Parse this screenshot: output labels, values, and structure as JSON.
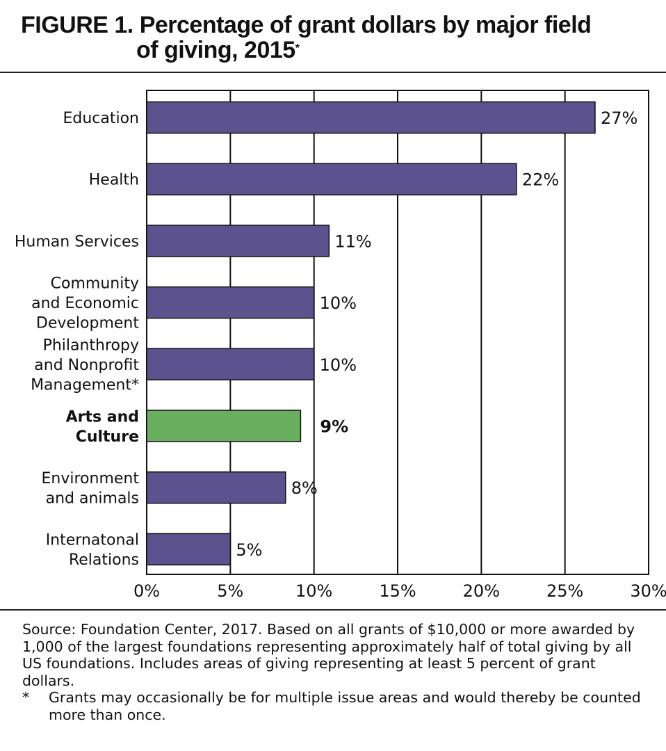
{
  "title": {
    "line1": "FIGURE 1. Percentage of grant dollars by major field",
    "line2": "of giving, 2015",
    "superscript": "*"
  },
  "chart_data": {
    "type": "bar",
    "orientation": "horizontal",
    "categories": [
      "Education",
      "Health",
      "Human Services",
      "Community\nand Economic\nDevelopment",
      "Philanthropy\nand Nonprofit\nManagement*",
      "Arts and\nCulture",
      "Environment\nand animals",
      "Internatonal\nRelations"
    ],
    "values": [
      26.8,
      22.1,
      10.9,
      10.0,
      10.0,
      9.2,
      8.3,
      5.0
    ],
    "data_labels": [
      "27%",
      "22%",
      "11%",
      "10%",
      "10%",
      "9%",
      "8%",
      "5%"
    ],
    "highlight_index": 5,
    "xlim": [
      0,
      30
    ],
    "xticks": [
      0,
      5,
      10,
      15,
      20,
      25,
      30
    ],
    "xtick_labels": [
      "0%",
      "5%",
      "10%",
      "15%",
      "20%",
      "25%",
      "30%"
    ],
    "grid": "vertical",
    "colors": {
      "bar": "#5b528e",
      "highlight": "#6aaf5f"
    }
  },
  "notes": {
    "source": "Source: Foundation Center, 2017. Based on all grants of $10,000 or more awarded by 1,000 of the largest foundations representing approximately half of total giving by all US foundations. Includes areas of giving representing at least 5 percent of grant dollars.",
    "footnote_marker": "*",
    "footnote": "Grants may occasionally be for multiple issue areas and would thereby be counted more than once."
  }
}
